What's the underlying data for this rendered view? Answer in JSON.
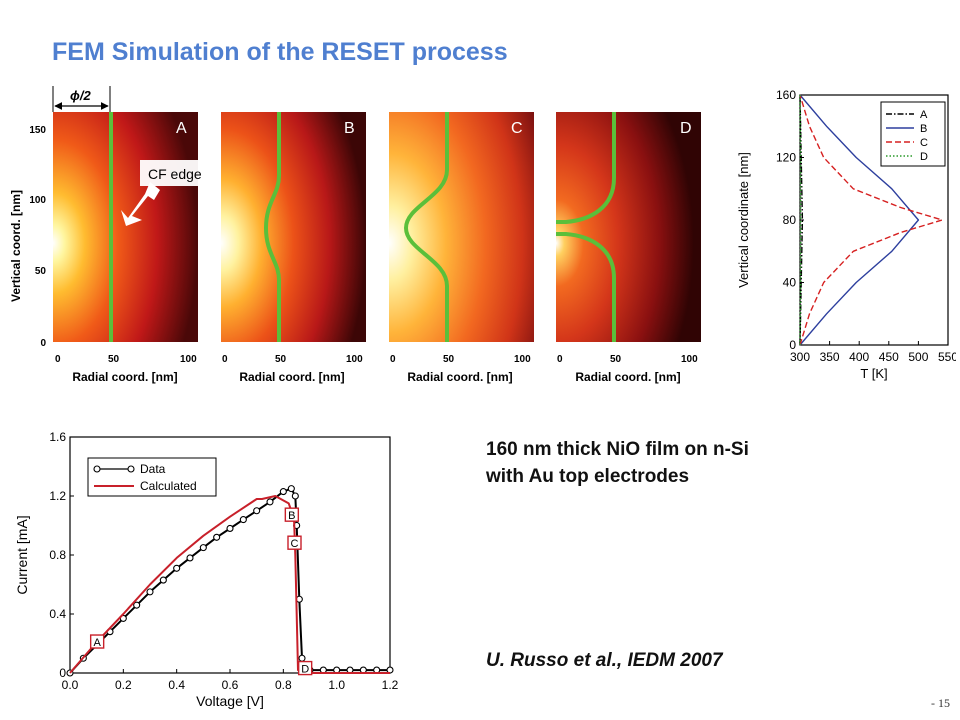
{
  "title": "FEM Simulation of the RESET process",
  "fem": {
    "phi_label": "ϕ/2",
    "ylabel": "Vertical coord. [nm]",
    "xlabel": "Radial coord. [nm]",
    "y_ticks": [
      "0",
      "50",
      "100",
      "150"
    ],
    "x_ticks": [
      "0",
      "50",
      "100"
    ],
    "callout": "CF edge",
    "panels": [
      {
        "label": "A"
      },
      {
        "label": "B"
      },
      {
        "label": "C"
      },
      {
        "label": "D"
      }
    ]
  },
  "info": {
    "line1": "160 nm thick NiO film on n-Si",
    "line2": "with Au top electrodes"
  },
  "citation": "U. Russo et al., IEDM 2007",
  "page_number": "- 15",
  "chart_data": [
    {
      "type": "line",
      "xlabel": "T [K]",
      "ylabel": "Vertical coordinate [nm]",
      "xlim": [
        300,
        550
      ],
      "ylim": [
        0,
        160
      ],
      "x_ticks": [
        "300",
        "350",
        "400",
        "450",
        "500",
        "550"
      ],
      "y_ticks": [
        "0",
        "40",
        "80",
        "120",
        "160"
      ],
      "legend_position": "top-right",
      "series": [
        {
          "name": "A",
          "color": "#000000",
          "style": "dash-dot",
          "points": [
            [
              300,
              0
            ],
            [
              301,
              20
            ],
            [
              302,
              40
            ],
            [
              303,
              60
            ],
            [
              304,
              80
            ],
            [
              303,
              100
            ],
            [
              302,
              120
            ],
            [
              301,
              140
            ],
            [
              300,
              160
            ]
          ]
        },
        {
          "name": "B",
          "color": "#2d3f9e",
          "style": "solid",
          "points": [
            [
              300,
              0
            ],
            [
              345,
              20
            ],
            [
              395,
              40
            ],
            [
              455,
              60
            ],
            [
              500,
              80
            ],
            [
              455,
              100
            ],
            [
              395,
              120
            ],
            [
              345,
              140
            ],
            [
              300,
              160
            ]
          ]
        },
        {
          "name": "C",
          "color": "#d62020",
          "style": "dashed",
          "points": [
            [
              300,
              0
            ],
            [
              316,
              20
            ],
            [
              340,
              40
            ],
            [
              390,
              60
            ],
            [
              470,
              72
            ],
            [
              540,
              80
            ],
            [
              470,
              88
            ],
            [
              390,
              100
            ],
            [
              340,
              120
            ],
            [
              316,
              140
            ],
            [
              300,
              160
            ]
          ]
        },
        {
          "name": "D",
          "color": "#2a9a2a",
          "style": "dotted",
          "points": [
            [
              300,
              0
            ],
            [
              301,
              40
            ],
            [
              301,
              80
            ],
            [
              301,
              120
            ],
            [
              300,
              160
            ]
          ]
        }
      ]
    },
    {
      "type": "line",
      "xlabel": "Voltage [V]",
      "ylabel": "Current [mA]",
      "xlim": [
        0,
        1.2
      ],
      "ylim": [
        0,
        1.6
      ],
      "x_ticks": [
        "0.0",
        "0.2",
        "0.4",
        "0.6",
        "0.8",
        "1.0",
        "1.2"
      ],
      "y_ticks": [
        "0",
        "0.4",
        "0.8",
        "1.2",
        "1.6"
      ],
      "legend_position": "top-left",
      "series": [
        {
          "name": "Data",
          "color": "#000000",
          "marker": "open-circle",
          "points": [
            [
              0,
              0
            ],
            [
              0.05,
              0.1
            ],
            [
              0.1,
              0.19
            ],
            [
              0.15,
              0.28
            ],
            [
              0.2,
              0.37
            ],
            [
              0.25,
              0.46
            ],
            [
              0.3,
              0.55
            ],
            [
              0.35,
              0.63
            ],
            [
              0.4,
              0.71
            ],
            [
              0.45,
              0.78
            ],
            [
              0.5,
              0.85
            ],
            [
              0.55,
              0.92
            ],
            [
              0.6,
              0.98
            ],
            [
              0.65,
              1.04
            ],
            [
              0.7,
              1.1
            ],
            [
              0.75,
              1.16
            ],
            [
              0.8,
              1.23
            ],
            [
              0.83,
              1.25
            ],
            [
              0.845,
              1.2
            ],
            [
              0.85,
              1.0
            ],
            [
              0.86,
              0.5
            ],
            [
              0.87,
              0.1
            ],
            [
              0.88,
              0.02
            ],
            [
              0.9,
              0.02
            ],
            [
              0.95,
              0.02
            ],
            [
              1.0,
              0.02
            ],
            [
              1.05,
              0.02
            ],
            [
              1.1,
              0.02
            ],
            [
              1.15,
              0.02
            ],
            [
              1.2,
              0.02
            ]
          ]
        },
        {
          "name": "Calculated",
          "color": "#c8202a",
          "marker": "none",
          "points": [
            [
              0,
              0
            ],
            [
              0.1,
              0.21
            ],
            [
              0.2,
              0.4
            ],
            [
              0.3,
              0.6
            ],
            [
              0.4,
              0.78
            ],
            [
              0.5,
              0.93
            ],
            [
              0.6,
              1.06
            ],
            [
              0.7,
              1.18
            ],
            [
              0.72,
              1.18
            ],
            [
              0.77,
              1.2
            ],
            [
              0.82,
              1.15
            ],
            [
              0.84,
              1.05
            ],
            [
              0.845,
              0.8
            ],
            [
              0.855,
              0.02
            ],
            [
              0.9,
              0.0
            ],
            [
              1.0,
              0.0
            ],
            [
              1.2,
              0.0
            ]
          ]
        }
      ],
      "annotations": [
        {
          "text": "A",
          "x": 0.1,
          "y": 0.21
        },
        {
          "text": "B",
          "x": 0.83,
          "y": 1.07
        },
        {
          "text": "C",
          "x": 0.84,
          "y": 0.88
        },
        {
          "text": "D",
          "x": 0.88,
          "y": 0.03
        }
      ]
    }
  ]
}
